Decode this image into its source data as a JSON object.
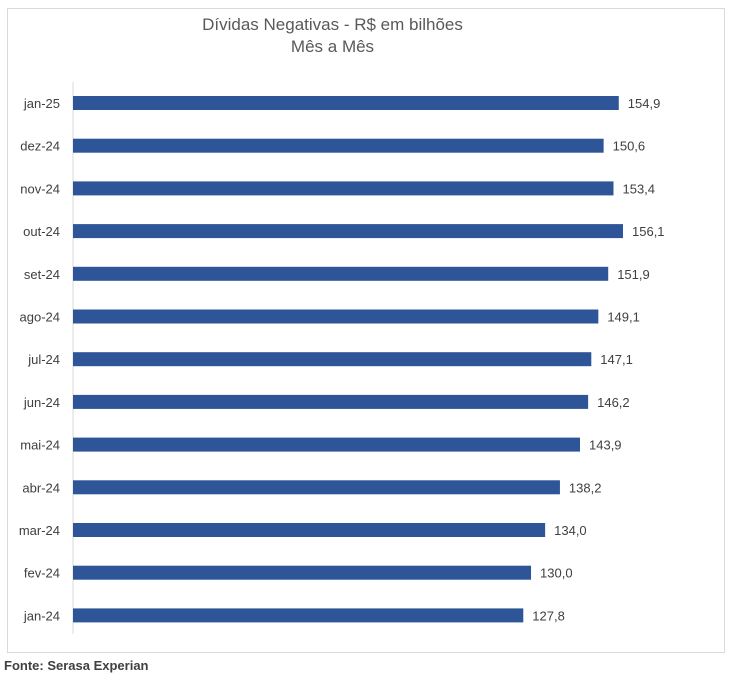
{
  "chart_data": {
    "type": "bar",
    "orientation": "horizontal",
    "title": "Dívidas Negativas - R$ em bilhões",
    "subtitle": "Mês a Mês",
    "categories": [
      "jan-25",
      "dez-24",
      "nov-24",
      "out-24",
      "set-24",
      "ago-24",
      "jul-24",
      "jun-24",
      "mai-24",
      "abr-24",
      "mar-24",
      "fev-24",
      "jan-24"
    ],
    "values": [
      154.9,
      150.6,
      153.4,
      156.1,
      151.9,
      149.1,
      147.1,
      146.2,
      143.9,
      138.2,
      134.0,
      130.0,
      127.8
    ],
    "value_labels": [
      "154,9",
      "150,6",
      "153,4",
      "156,1",
      "151,9",
      "149,1",
      "147,1",
      "146,2",
      "143,9",
      "138,2",
      "134,0",
      "130,0",
      "127,8"
    ],
    "xlim": [
      0,
      156.1
    ],
    "grid": false,
    "legend": "none",
    "bar_color": "#2e5597"
  },
  "source": "Fonte: Serasa Experian"
}
